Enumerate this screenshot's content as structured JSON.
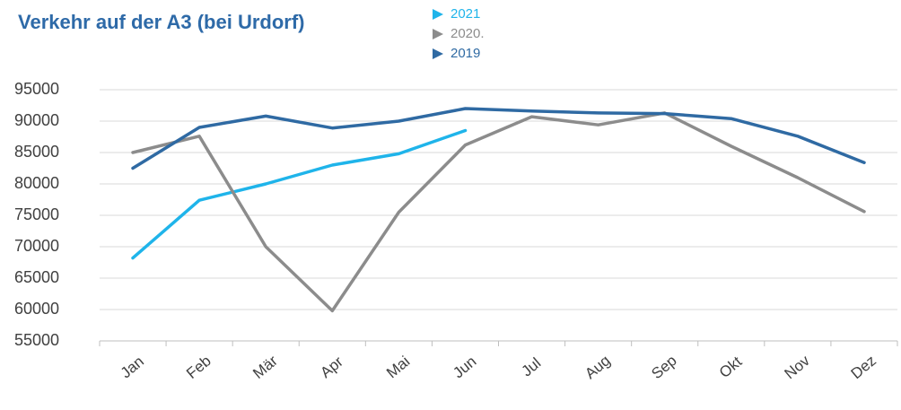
{
  "chart_data": {
    "type": "line",
    "title": "Verkehr auf der A3 (bei Urdorf)",
    "categories": [
      "Jan",
      "Feb",
      "Mär",
      "Apr",
      "Mai",
      "Jun",
      "Jul",
      "Aug",
      "Sep",
      "Okt",
      "Nov",
      "Dez"
    ],
    "series": [
      {
        "name": "2021",
        "color": "#1fb4ea",
        "values": [
          68200,
          77400,
          80000,
          83000,
          84800,
          88500,
          null,
          null,
          null,
          null,
          null,
          null
        ]
      },
      {
        "name": "2020.",
        "color": "#8c8c8c",
        "values": [
          85000,
          87600,
          70000,
          59800,
          75500,
          86200,
          90700,
          89400,
          91300,
          86000,
          81000,
          75600
        ]
      },
      {
        "name": "2019",
        "color": "#2f6aa3",
        "values": [
          82500,
          89000,
          90800,
          88900,
          90000,
          92000,
          91600,
          91300,
          91200,
          90400,
          87600,
          83400
        ]
      }
    ],
    "ylim": [
      55000,
      95000
    ],
    "yticks": [
      55000,
      60000,
      65000,
      70000,
      75000,
      80000,
      85000,
      90000,
      95000
    ],
    "grid": true
  }
}
